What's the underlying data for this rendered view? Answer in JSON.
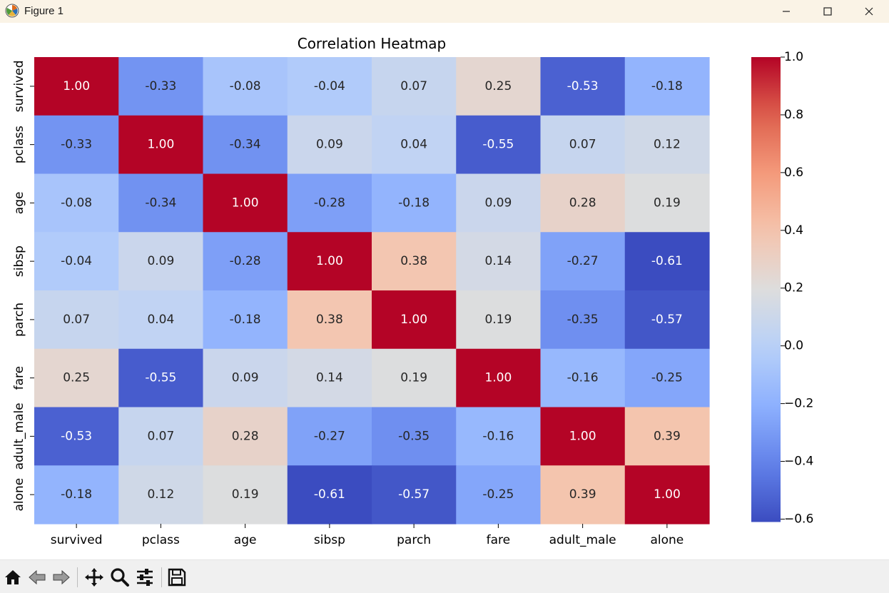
{
  "window": {
    "title": "Figure 1",
    "icons": [
      "matplotlib-logo-icon",
      "minimize-icon",
      "maximize-icon",
      "close-icon"
    ]
  },
  "toolbar": {
    "buttons": [
      "home-icon",
      "back-icon",
      "forward-icon",
      "pan-icon",
      "zoom-icon",
      "configure-subplots-icon",
      "save-icon"
    ]
  },
  "chart_data": {
    "type": "heatmap",
    "title": "Correlation Heatmap",
    "xlabel": "",
    "ylabel": "",
    "x_categories": [
      "survived",
      "pclass",
      "age",
      "sibsp",
      "parch",
      "fare",
      "adult_male",
      "alone"
    ],
    "y_categories": [
      "survived",
      "pclass",
      "age",
      "sibsp",
      "parch",
      "fare",
      "adult_male",
      "alone"
    ],
    "values": [
      [
        1.0,
        -0.33,
        -0.08,
        -0.04,
        0.07,
        0.25,
        -0.53,
        -0.18
      ],
      [
        -0.33,
        1.0,
        -0.34,
        0.09,
        0.04,
        -0.55,
        0.07,
        0.12
      ],
      [
        -0.08,
        -0.34,
        1.0,
        -0.28,
        -0.18,
        0.09,
        0.28,
        0.19
      ],
      [
        -0.04,
        0.09,
        -0.28,
        1.0,
        0.38,
        0.14,
        -0.27,
        -0.61
      ],
      [
        0.07,
        0.04,
        -0.18,
        0.38,
        1.0,
        0.19,
        -0.35,
        -0.57
      ],
      [
        0.25,
        -0.55,
        0.09,
        0.14,
        0.19,
        1.0,
        -0.16,
        -0.25
      ],
      [
        -0.53,
        0.07,
        0.28,
        -0.27,
        -0.35,
        -0.16,
        1.0,
        0.39
      ],
      [
        -0.18,
        0.12,
        0.19,
        -0.61,
        -0.57,
        -0.25,
        0.39,
        1.0
      ]
    ],
    "annotation_format": "2 decimals",
    "colormap": "coolwarm",
    "vmin": -0.61,
    "vmax": 1.0,
    "colorbar_ticks": [
      "1.0",
      "0.8",
      "0.6",
      "0.4",
      "0.2",
      "0.0",
      "−0.2",
      "−0.4",
      "−0.6"
    ],
    "colorbar_tick_values": [
      1.0,
      0.8,
      0.6,
      0.4,
      0.2,
      0.0,
      -0.2,
      -0.4,
      -0.6
    ],
    "colors": {
      "low": "#3b4cc0",
      "mid": "#dddddd",
      "high": "#b40426"
    },
    "grid": false,
    "legend": "colorbar-right"
  }
}
